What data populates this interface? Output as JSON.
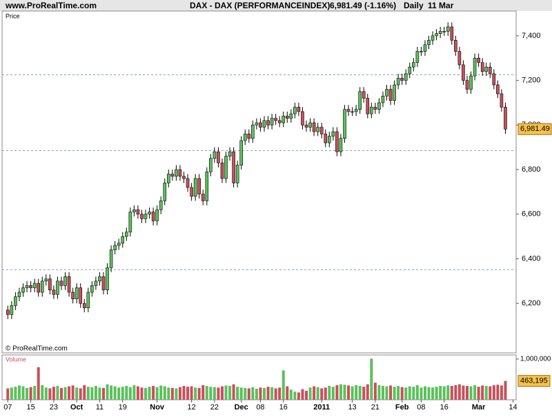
{
  "header": {
    "site": "www.ProRealTime.com",
    "instrument": "DAX - DAX (PERFORMANCEINDEX)",
    "quote": "6,981.49 (-1.16%)",
    "period": "Daily",
    "date": "11 Mar"
  },
  "chart_data": [
    {
      "type": "candlestick",
      "title": "Price",
      "credit": "© ProRealTime.com",
      "up_color": "#5cc05c",
      "down_color": "#c8505a",
      "xlim": [
        -1.5,
        132.8
      ],
      "ylim": [
        5978,
        7511
      ],
      "yticks": [
        {
          "value": 6200,
          "label": "6,200"
        },
        {
          "value": 6400,
          "label": "6,400"
        },
        {
          "value": 6600,
          "label": "6,600"
        },
        {
          "value": 6800,
          "label": "6,800"
        },
        {
          "value": 7000,
          "label": "7,000"
        },
        {
          "value": 7200,
          "label": "7,200"
        },
        {
          "value": 7400,
          "label": "7,400"
        }
      ],
      "xticks": [
        {
          "value": 0,
          "label": "07"
        },
        {
          "value": 6,
          "label": "15"
        },
        {
          "value": 12,
          "label": "23"
        },
        {
          "value": 18,
          "label": "Oct"
        },
        {
          "value": 24,
          "label": "11"
        },
        {
          "value": 30,
          "label": "19"
        },
        {
          "value": 39,
          "label": "Nov"
        },
        {
          "value": 48,
          "label": "12"
        },
        {
          "value": 54,
          "label": "22"
        },
        {
          "value": 61,
          "label": "Dec"
        },
        {
          "value": 66,
          "label": "08"
        },
        {
          "value": 72,
          "label": "16"
        },
        {
          "value": 82,
          "label": "2011"
        },
        {
          "value": 90,
          "label": "13"
        },
        {
          "value": 96,
          "label": "21"
        },
        {
          "value": 103,
          "label": "Feb"
        },
        {
          "value": 108,
          "label": "08"
        },
        {
          "value": 114,
          "label": "16"
        },
        {
          "value": 123,
          "label": "Mar"
        },
        {
          "value": 132,
          "label": "14"
        }
      ],
      "hlines": [
        7225,
        6885,
        6351
      ],
      "last_label": "6,981.49",
      "open": [
        6170,
        6150,
        6190,
        6230,
        6250,
        6270,
        6280,
        6270,
        6290,
        6250,
        6300,
        6310,
        6260,
        6240,
        6300,
        6280,
        6320,
        6250,
        6220,
        6270,
        6200,
        6180,
        6250,
        6280,
        6300,
        6320,
        6260,
        6360,
        6440,
        6460,
        6470,
        6500,
        6520,
        6610,
        6620,
        6600,
        6580,
        6600,
        6610,
        6570,
        6620,
        6660,
        6740,
        6780,
        6770,
        6800,
        6770,
        6760,
        6720,
        6680,
        6760,
        6690,
        6660,
        6790,
        6850,
        6880,
        6830,
        6760,
        6860,
        6880,
        6740,
        6820,
        6930,
        6960,
        6940,
        7000,
        7010,
        6990,
        7020,
        7000,
        7030,
        7020,
        7010,
        7040,
        7030,
        7050,
        7080,
        7060,
        7000,
        6990,
        7010,
        6970,
        6990,
        6960,
        6920,
        6950,
        6970,
        6880,
        6940,
        7070,
        7060,
        7060,
        7070,
        7150,
        7120,
        7050,
        7080,
        7070,
        7100,
        7130,
        7160,
        7110,
        7180,
        7210,
        7200,
        7230,
        7260,
        7280,
        7330,
        7330,
        7360,
        7380,
        7400,
        7410,
        7420,
        7420,
        7440,
        7380,
        7330,
        7270,
        7200,
        7160,
        7220,
        7300,
        7280,
        7240,
        7260,
        7230,
        7180,
        7140,
        7080
      ],
      "high": [
        6190,
        6210,
        6250,
        6270,
        6290,
        6300,
        6300,
        6310,
        6310,
        6320,
        6330,
        6330,
        6280,
        6320,
        6320,
        6340,
        6340,
        6270,
        6290,
        6290,
        6220,
        6270,
        6300,
        6320,
        6340,
        6340,
        6380,
        6460,
        6480,
        6490,
        6520,
        6540,
        6630,
        6640,
        6640,
        6620,
        6620,
        6630,
        6630,
        6640,
        6680,
        6760,
        6800,
        6800,
        6820,
        6820,
        6790,
        6780,
        6740,
        6780,
        6780,
        6710,
        6810,
        6870,
        6900,
        6900,
        6850,
        6880,
        6900,
        6900,
        6840,
        6950,
        6980,
        6980,
        7020,
        7030,
        7030,
        7040,
        7040,
        7050,
        7050,
        7040,
        7060,
        7060,
        7070,
        7100,
        7100,
        7080,
        7020,
        7030,
        7030,
        7010,
        7010,
        6980,
        6970,
        6990,
        6990,
        6960,
        7090,
        7090,
        7080,
        7090,
        7170,
        7170,
        7140,
        7100,
        7100,
        7120,
        7150,
        7180,
        7180,
        7200,
        7230,
        7230,
        7250,
        7280,
        7300,
        7350,
        7350,
        7380,
        7400,
        7420,
        7430,
        7440,
        7440,
        7460,
        7460,
        7400,
        7350,
        7290,
        7220,
        7240,
        7320,
        7320,
        7300,
        7280,
        7280,
        7250,
        7200,
        7160,
        7100
      ],
      "low": [
        6130,
        6130,
        6170,
        6210,
        6230,
        6250,
        6250,
        6250,
        6230,
        6230,
        6280,
        6240,
        6220,
        6220,
        6260,
        6260,
        6230,
        6200,
        6200,
        6180,
        6160,
        6160,
        6230,
        6260,
        6280,
        6240,
        6240,
        6340,
        6420,
        6440,
        6450,
        6480,
        6500,
        6590,
        6580,
        6560,
        6560,
        6580,
        6550,
        6550,
        6600,
        6640,
        6720,
        6750,
        6750,
        6750,
        6740,
        6700,
        6660,
        6660,
        6670,
        6640,
        6640,
        6770,
        6830,
        6810,
        6740,
        6740,
        6840,
        6720,
        6720,
        6800,
        6910,
        6920,
        6920,
        6980,
        6970,
        6970,
        6980,
        6980,
        7000,
        6990,
        6990,
        7010,
        7010,
        7030,
        7040,
        6980,
        6970,
        6970,
        6950,
        6950,
        6940,
        6900,
        6900,
        6930,
        6860,
        6860,
        6920,
        7040,
        7040,
        7040,
        7050,
        7100,
        7030,
        7030,
        7050,
        7050,
        7080,
        7110,
        7090,
        7090,
        7160,
        7180,
        7180,
        7210,
        7240,
        7260,
        7310,
        7310,
        7340,
        7360,
        7380,
        7390,
        7400,
        7400,
        7360,
        7310,
        7250,
        7180,
        7140,
        7140,
        7200,
        7260,
        7220,
        7220,
        7210,
        7160,
        7120,
        7060,
        6960
      ],
      "close": [
        6150,
        6190,
        6230,
        6250,
        6270,
        6280,
        6270,
        6290,
        6250,
        6300,
        6310,
        6260,
        6240,
        6300,
        6280,
        6320,
        6250,
        6220,
        6270,
        6200,
        6180,
        6250,
        6280,
        6300,
        6320,
        6260,
        6360,
        6440,
        6460,
        6470,
        6500,
        6520,
        6610,
        6620,
        6600,
        6580,
        6600,
        6610,
        6570,
        6620,
        6660,
        6740,
        6780,
        6770,
        6800,
        6770,
        6760,
        6720,
        6680,
        6760,
        6690,
        6660,
        6790,
        6850,
        6880,
        6830,
        6760,
        6860,
        6880,
        6740,
        6820,
        6930,
        6960,
        6940,
        7000,
        7010,
        6990,
        7020,
        7000,
        7030,
        7020,
        7010,
        7040,
        7030,
        7050,
        7080,
        7060,
        7000,
        6990,
        7010,
        6970,
        6990,
        6960,
        6920,
        6950,
        6970,
        6880,
        6940,
        7070,
        7060,
        7060,
        7070,
        7150,
        7120,
        7050,
        7080,
        7070,
        7100,
        7130,
        7160,
        7110,
        7180,
        7210,
        7200,
        7230,
        7260,
        7280,
        7330,
        7330,
        7360,
        7380,
        7400,
        7410,
        7420,
        7420,
        7440,
        7380,
        7330,
        7270,
        7200,
        7160,
        7220,
        7300,
        7280,
        7240,
        7260,
        7230,
        7180,
        7140,
        7080,
        6981.49
      ]
    },
    {
      "type": "volume",
      "title": "Volume",
      "up_color": "#5cc05c",
      "down_color": "#c8505a",
      "ylim": [
        0,
        1100000
      ],
      "yticks": [
        {
          "value": 1000000,
          "label": "1,000,000"
        }
      ],
      "last_label": "463,195",
      "values": [
        280000,
        300000,
        320000,
        350000,
        330000,
        290000,
        310000,
        340000,
        800000,
        360000,
        300000,
        280000,
        320000,
        340000,
        290000,
        310000,
        330000,
        350000,
        300000,
        280000,
        360000,
        320000,
        310000,
        340000,
        300000,
        290000,
        380000,
        350000,
        330000,
        300000,
        320000,
        340000,
        310000,
        360000,
        330000,
        300000,
        290000,
        320000,
        340000,
        310000,
        350000,
        330000,
        300000,
        290000,
        280000,
        310000,
        340000,
        320000,
        330000,
        300000,
        290000,
        360000,
        340000,
        320000,
        310000,
        300000,
        330000,
        350000,
        340000,
        380000,
        320000,
        300000,
        290000,
        280000,
        310000,
        270000,
        300000,
        290000,
        320000,
        310000,
        280000,
        300000,
        720000,
        330000,
        250000,
        200000,
        180000,
        260000,
        220000,
        300000,
        330000,
        310000,
        280000,
        300000,
        340000,
        320000,
        360000,
        380000,
        370000,
        350000,
        330000,
        360000,
        340000,
        320000,
        380000,
        1010000,
        420000,
        360000,
        340000,
        330000,
        350000,
        320000,
        340000,
        310000,
        300000,
        330000,
        320000,
        360000,
        300000,
        330000,
        310000,
        300000,
        320000,
        340000,
        330000,
        350000,
        340000,
        360000,
        380000,
        350000,
        340000,
        330000,
        360000,
        320000,
        350000,
        340000,
        330000,
        360000,
        370000,
        350000,
        463195
      ]
    }
  ]
}
